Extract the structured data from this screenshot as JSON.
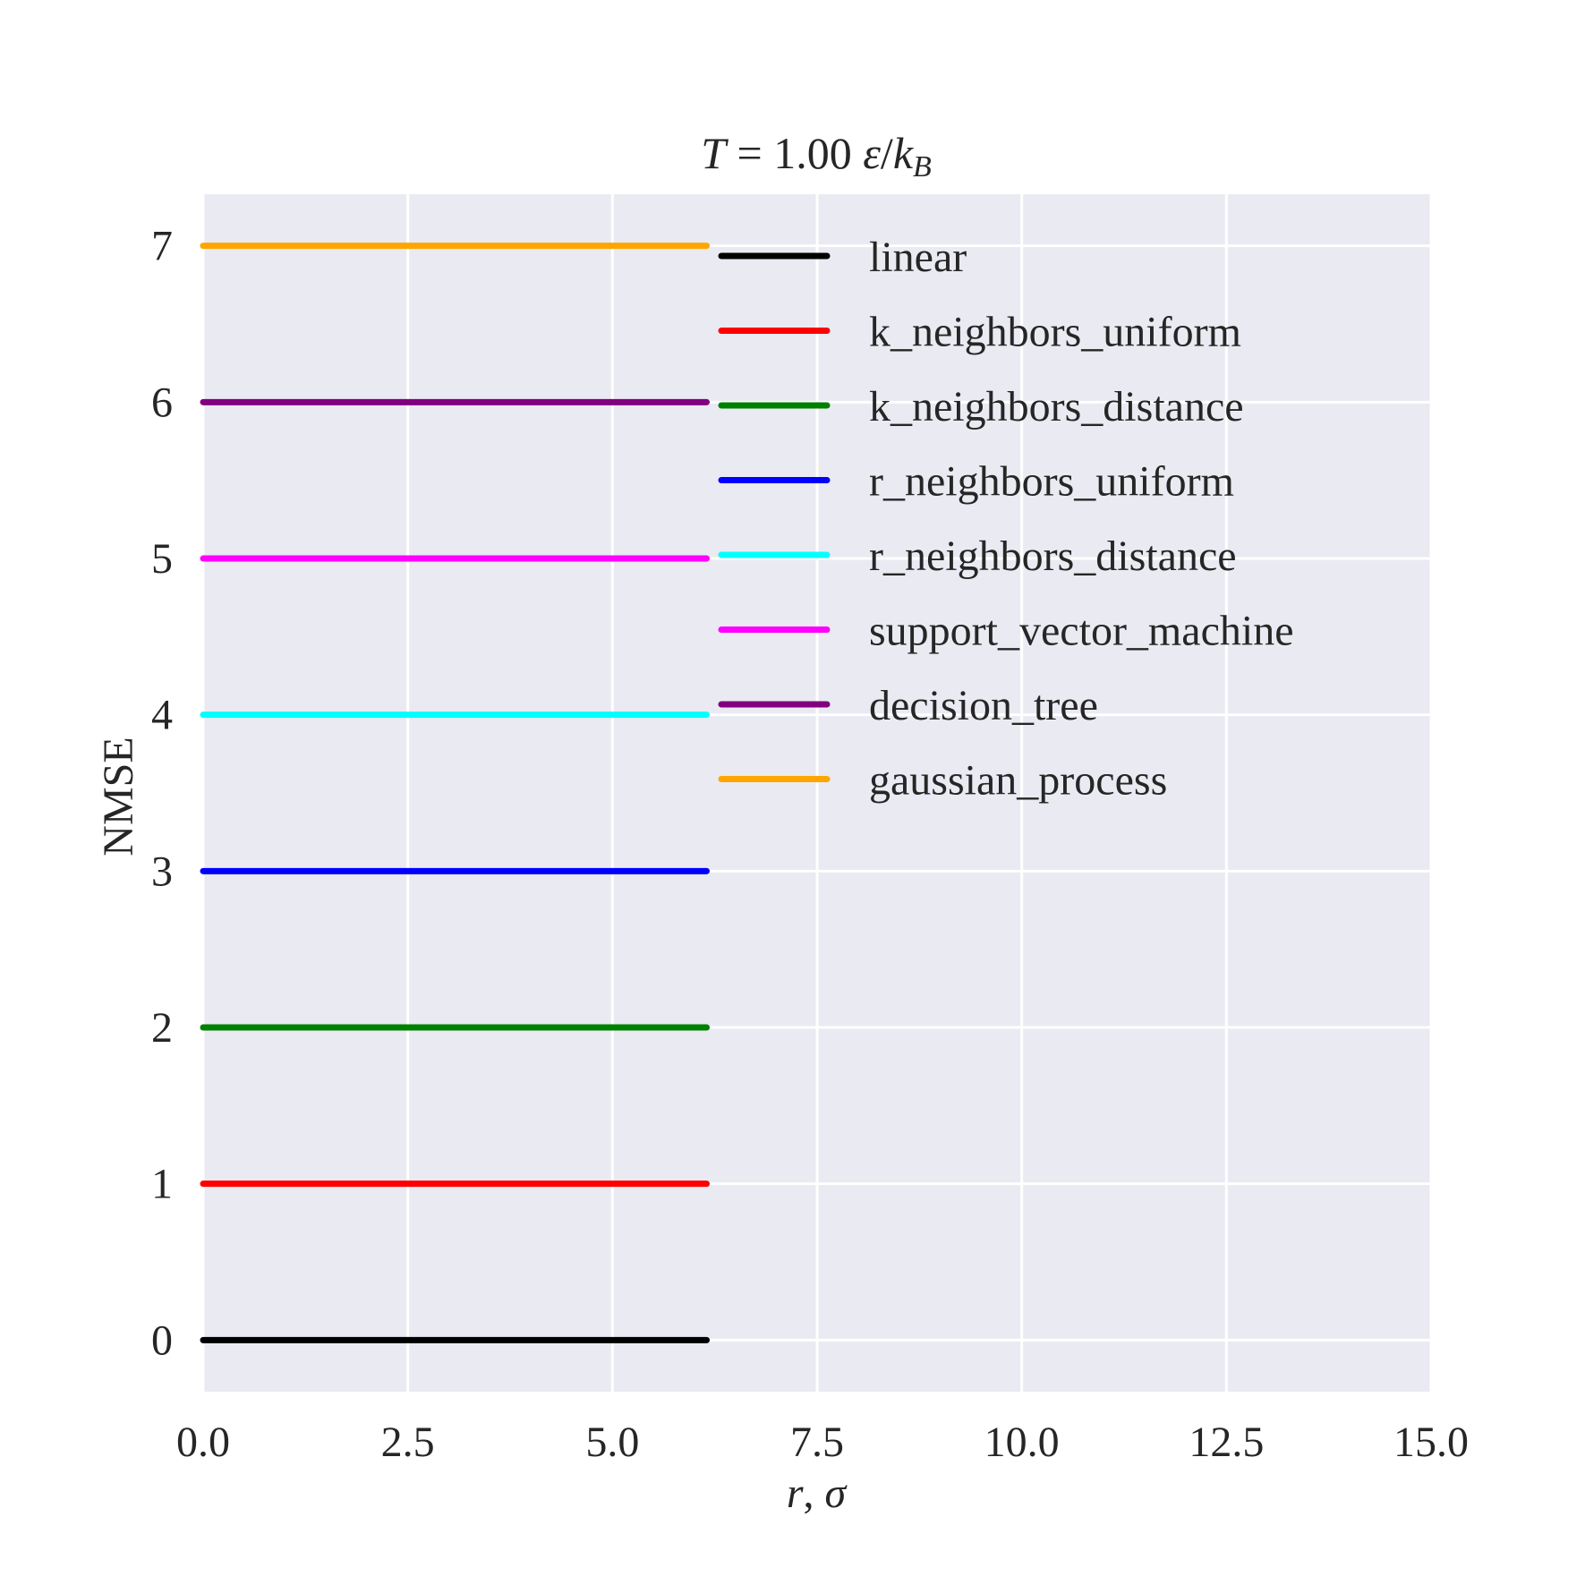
{
  "chart_data": {
    "type": "line",
    "title": {
      "var": "T",
      "eq": " = 1.00 ",
      "unit_eps": "ε",
      "unit_slash": "/",
      "unit_k": "k",
      "unit_sub": "B"
    },
    "xlabel": {
      "r": "r",
      "sep": ", ",
      "sigma": "σ"
    },
    "ylabel": "NMSE",
    "xlim": [
      0,
      15
    ],
    "ylim": [
      -0.33,
      7.33
    ],
    "xticks": [
      "0.0",
      "2.5",
      "5.0",
      "7.5",
      "10.0",
      "12.5",
      "15.0"
    ],
    "xtick_values": [
      0,
      2.5,
      5,
      7.5,
      10,
      12.5,
      15
    ],
    "yticks": [
      "0",
      "1",
      "2",
      "3",
      "4",
      "5",
      "6",
      "7"
    ],
    "ytick_values": [
      0,
      1,
      2,
      3,
      4,
      5,
      6,
      7
    ],
    "grid": true,
    "legend_position": "top-right",
    "background": "#eaeaf2",
    "series": [
      {
        "name": "linear",
        "color": "#000000",
        "x": [
          0,
          6.15
        ],
        "y": [
          0,
          0
        ]
      },
      {
        "name": "k_neighbors_uniform",
        "color": "#ff0000",
        "x": [
          0,
          6.15
        ],
        "y": [
          1,
          1
        ]
      },
      {
        "name": "k_neighbors_distance",
        "color": "#008000",
        "x": [
          0,
          6.15
        ],
        "y": [
          2,
          2
        ]
      },
      {
        "name": "r_neighbors_uniform",
        "color": "#0000ff",
        "x": [
          0,
          6.15
        ],
        "y": [
          3,
          3
        ]
      },
      {
        "name": "r_neighbors_distance",
        "color": "#00ffff",
        "x": [
          0,
          6.15
        ],
        "y": [
          4,
          4
        ]
      },
      {
        "name": "support_vector_machine",
        "color": "#ff00ff",
        "x": [
          0,
          6.15
        ],
        "y": [
          5,
          5
        ]
      },
      {
        "name": "decision_tree",
        "color": "#800080",
        "x": [
          0,
          6.15
        ],
        "y": [
          6,
          6
        ]
      },
      {
        "name": "gaussian_process",
        "color": "#ffa500",
        "x": [
          0,
          6.15
        ],
        "y": [
          7,
          7
        ]
      }
    ]
  }
}
